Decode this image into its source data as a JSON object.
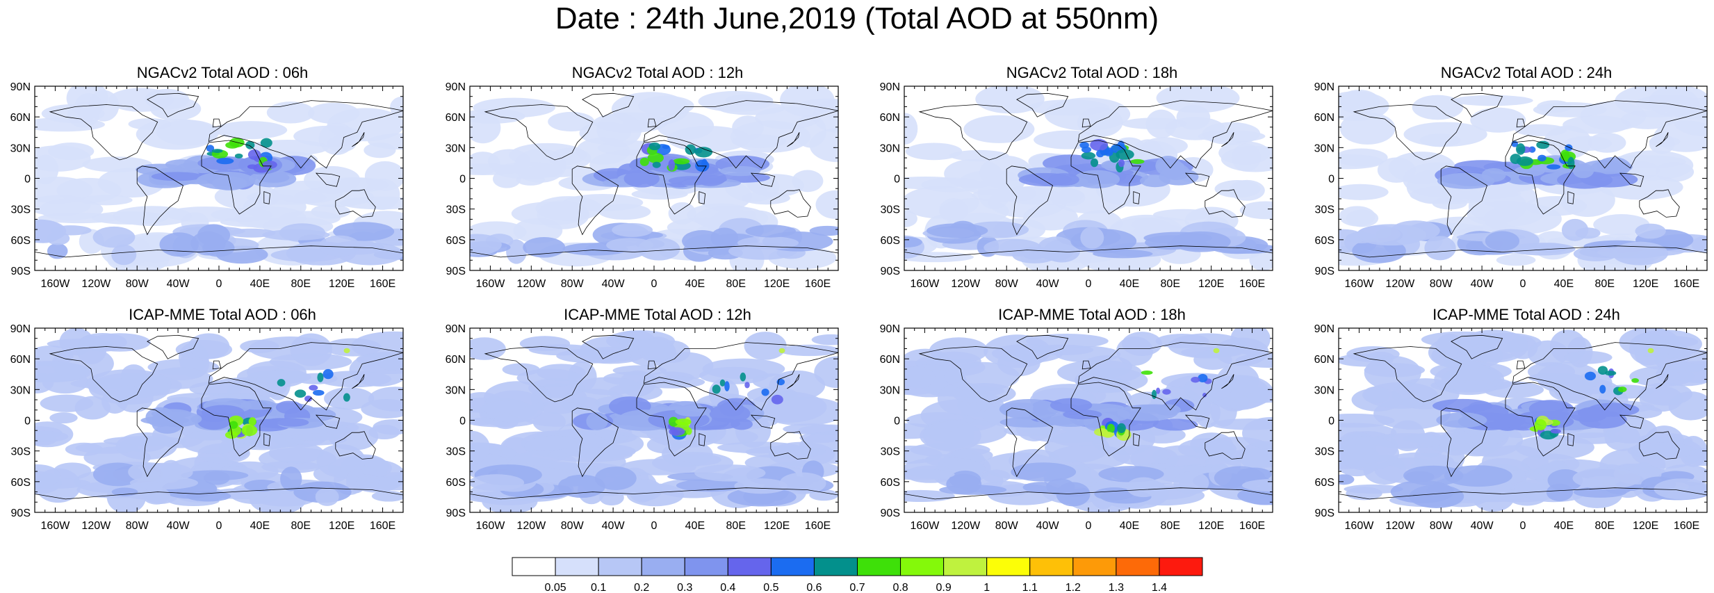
{
  "figure": {
    "title": "Date : 24th June,2019 (Total AOD at 550nm)"
  },
  "panels": [
    {
      "title": "NGACv2 Total AOD : 06h"
    },
    {
      "title": "NGACv2 Total AOD : 12h"
    },
    {
      "title": "NGACv2 Total AOD : 18h"
    },
    {
      "title": "NGACv2 Total AOD : 24h"
    },
    {
      "title": "ICAP-MME Total AOD : 06h"
    },
    {
      "title": "ICAP-MME Total AOD : 12h"
    },
    {
      "title": "ICAP-MME Total AOD : 18h"
    },
    {
      "title": "ICAP-MME Total AOD : 24h"
    }
  ],
  "axes": {
    "lat_ticks": [
      "90N",
      "60N",
      "30N",
      "0",
      "30S",
      "60S",
      "90S"
    ],
    "lat_values": [
      90,
      60,
      30,
      0,
      -30,
      -60,
      -90
    ],
    "lon_ticks": [
      "160W",
      "120W",
      "80W",
      "40W",
      "0",
      "40E",
      "80E",
      "120E",
      "160E"
    ],
    "lon_values": [
      -160,
      -120,
      -80,
      -40,
      0,
      40,
      80,
      120,
      160
    ],
    "lon_range": [
      -180,
      180
    ],
    "lat_range": [
      -90,
      90
    ]
  },
  "colorbar": {
    "labels": [
      "0.05",
      "0.1",
      "0.2",
      "0.3",
      "0.4",
      "0.5",
      "0.6",
      "0.7",
      "0.8",
      "0.9",
      "1",
      "1.1",
      "1.2",
      "1.3",
      "1.4"
    ],
    "colors": [
      "#ffffff",
      "#d6e0fb",
      "#b7c7f6",
      "#99aef1",
      "#7f94ee",
      "#6565ec",
      "#1b6cf1",
      "#03908c",
      "#3ee009",
      "#84f90a",
      "#bff23e",
      "#fcfe07",
      "#fec007",
      "#fd9a08",
      "#fd6a08",
      "#fd1a0e"
    ]
  }
}
